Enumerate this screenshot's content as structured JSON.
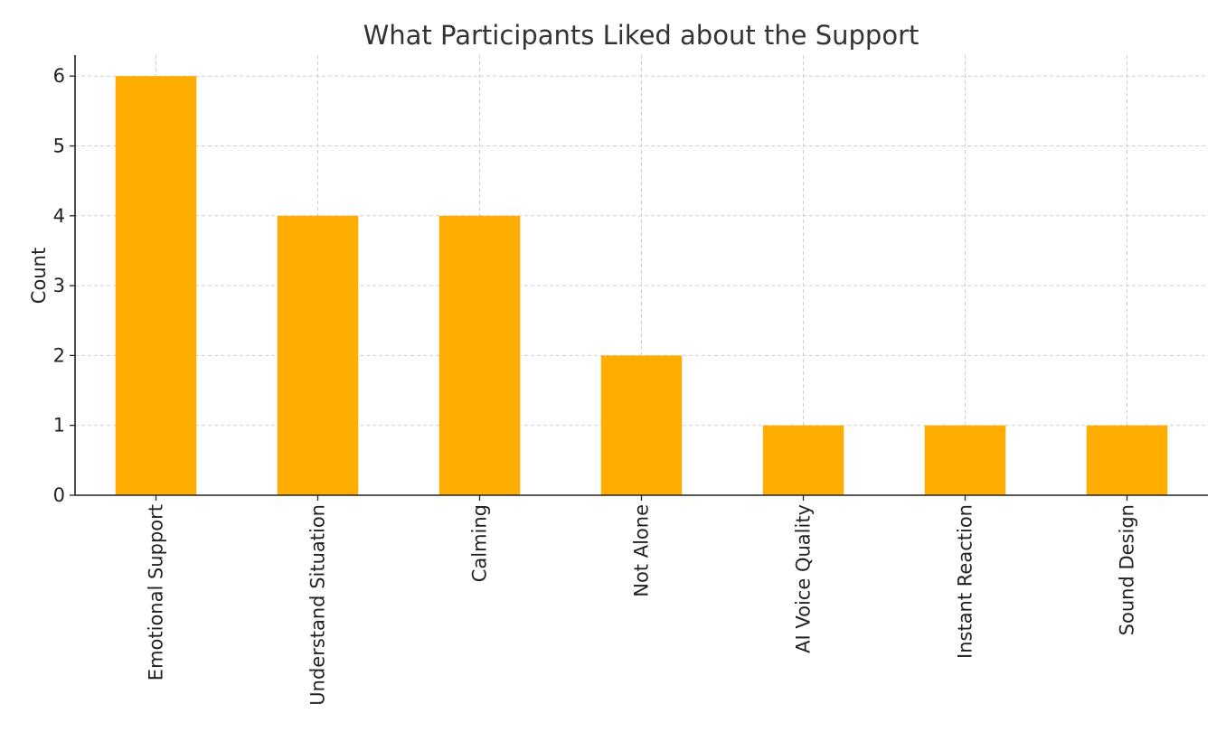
{
  "chart_data": {
    "type": "bar",
    "title": "What Participants Liked about the Support",
    "xlabel": "",
    "ylabel": "Count",
    "categories": [
      "Emotional Support",
      "Understand Situation",
      "Calming",
      "Not Alone",
      "AI Voice Quality",
      "Instant Reaction",
      "Sound Design"
    ],
    "values": [
      6,
      4,
      4,
      2,
      1,
      1,
      1
    ],
    "ylim": [
      0,
      6.3
    ],
    "yticks": [
      0,
      1,
      2,
      3,
      4,
      5,
      6
    ],
    "grid": true,
    "bar_color": "#FFAD00",
    "legend": "none"
  }
}
